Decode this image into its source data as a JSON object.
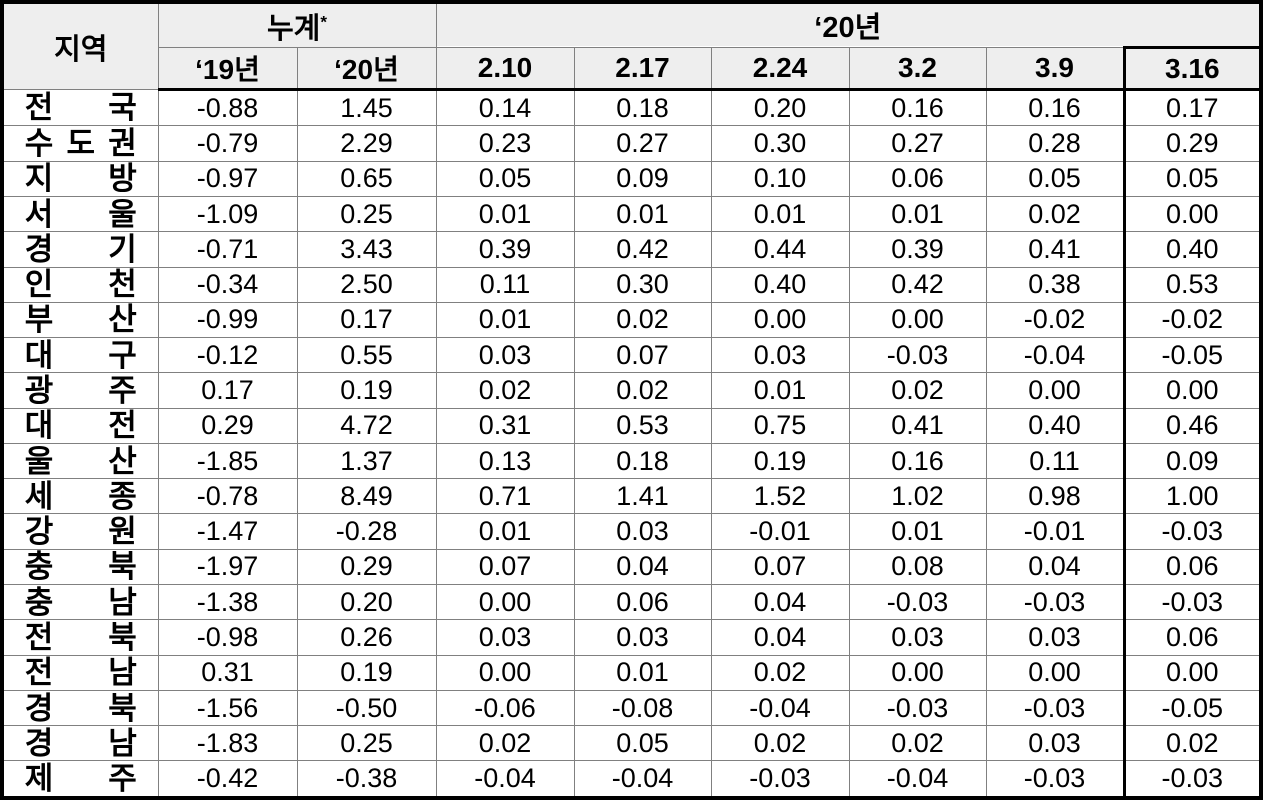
{
  "colors": {
    "header_bg": "#eeeeee",
    "grid_line": "#808080",
    "frame": "#000000",
    "text": "#000000"
  },
  "chart_data": {
    "type": "table",
    "corner_header": "지역",
    "groups": [
      {
        "label": "누계",
        "superscript": "*",
        "span": 2
      },
      {
        "label": "‘20년",
        "span": 6
      }
    ],
    "sub_headers": [
      "‘19년",
      "‘20년",
      "2.10",
      "2.17",
      "2.24",
      "3.2",
      "3.9",
      "3.16"
    ],
    "highlight_column": "3.16",
    "rows": [
      {
        "region": "전국",
        "values": [
          "-0.88",
          "1.45",
          "0.14",
          "0.18",
          "0.20",
          "0.16",
          "0.16",
          "0.17"
        ]
      },
      {
        "region": "수도권",
        "values": [
          "-0.79",
          "2.29",
          "0.23",
          "0.27",
          "0.30",
          "0.27",
          "0.28",
          "0.29"
        ]
      },
      {
        "region": "지방",
        "values": [
          "-0.97",
          "0.65",
          "0.05",
          "0.09",
          "0.10",
          "0.06",
          "0.05",
          "0.05"
        ]
      },
      {
        "region": "서울",
        "values": [
          "-1.09",
          "0.25",
          "0.01",
          "0.01",
          "0.01",
          "0.01",
          "0.02",
          "0.00"
        ]
      },
      {
        "region": "경기",
        "values": [
          "-0.71",
          "3.43",
          "0.39",
          "0.42",
          "0.44",
          "0.39",
          "0.41",
          "0.40"
        ]
      },
      {
        "region": "인천",
        "values": [
          "-0.34",
          "2.50",
          "0.11",
          "0.30",
          "0.40",
          "0.42",
          "0.38",
          "0.53"
        ]
      },
      {
        "region": "부산",
        "values": [
          "-0.99",
          "0.17",
          "0.01",
          "0.02",
          "0.00",
          "0.00",
          "-0.02",
          "-0.02"
        ]
      },
      {
        "region": "대구",
        "values": [
          "-0.12",
          "0.55",
          "0.03",
          "0.07",
          "0.03",
          "-0.03",
          "-0.04",
          "-0.05"
        ]
      },
      {
        "region": "광주",
        "values": [
          "0.17",
          "0.19",
          "0.02",
          "0.02",
          "0.01",
          "0.02",
          "0.00",
          "0.00"
        ]
      },
      {
        "region": "대전",
        "values": [
          "0.29",
          "4.72",
          "0.31",
          "0.53",
          "0.75",
          "0.41",
          "0.40",
          "0.46"
        ]
      },
      {
        "region": "울산",
        "values": [
          "-1.85",
          "1.37",
          "0.13",
          "0.18",
          "0.19",
          "0.16",
          "0.11",
          "0.09"
        ]
      },
      {
        "region": "세종",
        "values": [
          "-0.78",
          "8.49",
          "0.71",
          "1.41",
          "1.52",
          "1.02",
          "0.98",
          "1.00"
        ]
      },
      {
        "region": "강원",
        "values": [
          "-1.47",
          "-0.28",
          "0.01",
          "0.03",
          "-0.01",
          "0.01",
          "-0.01",
          "-0.03"
        ]
      },
      {
        "region": "충북",
        "values": [
          "-1.97",
          "0.29",
          "0.07",
          "0.04",
          "0.07",
          "0.08",
          "0.04",
          "0.06"
        ]
      },
      {
        "region": "충남",
        "values": [
          "-1.38",
          "0.20",
          "0.00",
          "0.06",
          "0.04",
          "-0.03",
          "-0.03",
          "-0.03"
        ]
      },
      {
        "region": "전북",
        "values": [
          "-0.98",
          "0.26",
          "0.03",
          "0.03",
          "0.04",
          "0.03",
          "0.03",
          "0.06"
        ]
      },
      {
        "region": "전남",
        "values": [
          "0.31",
          "0.19",
          "0.00",
          "0.01",
          "0.02",
          "0.00",
          "0.00",
          "0.00"
        ]
      },
      {
        "region": "경북",
        "values": [
          "-1.56",
          "-0.50",
          "-0.06",
          "-0.08",
          "-0.04",
          "-0.03",
          "-0.03",
          "-0.05"
        ]
      },
      {
        "region": "경남",
        "values": [
          "-1.83",
          "0.25",
          "0.02",
          "0.05",
          "0.02",
          "0.02",
          "0.03",
          "0.02"
        ]
      },
      {
        "region": "제주",
        "values": [
          "-0.42",
          "-0.38",
          "-0.04",
          "-0.04",
          "-0.03",
          "-0.04",
          "-0.03",
          "-0.03"
        ]
      }
    ]
  }
}
